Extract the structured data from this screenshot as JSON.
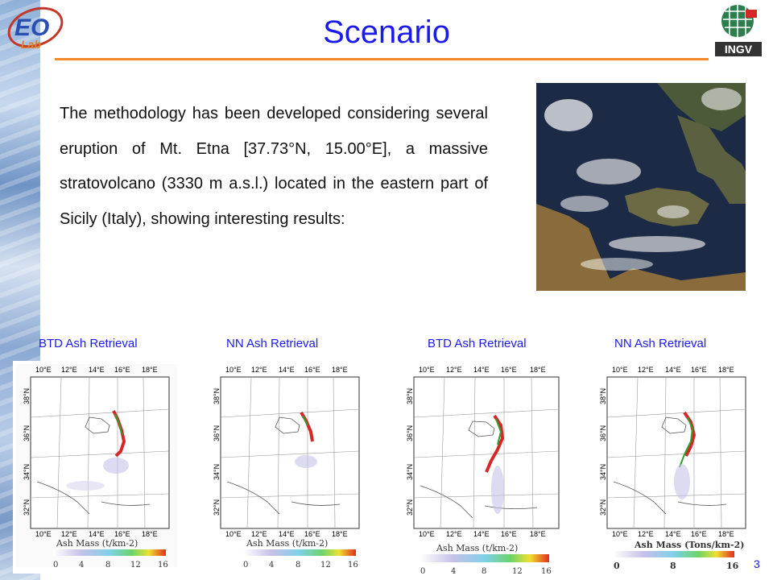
{
  "title": "Scenario",
  "logos": {
    "left": "EO Lab",
    "left_sub": "Tor Vergata",
    "right": "INGV"
  },
  "body_text": "The methodology has been developed considering several eruption of Mt. Etna [37.73°N, 15.00°E], a massive stratovolcano (3330 m a.s.l.) located in the eastern part of Sicily (Italy), showing interesting results:",
  "map_labels": [
    "BTD Ash Retrieval",
    "NN Ash Retrieval",
    "BTD Ash Retrieval",
    "NN Ash Retrieval"
  ],
  "lon_ticks": [
    "10°E",
    "12°E",
    "14°E",
    "16°E",
    "18°E"
  ],
  "lat_ticks": [
    "32°N",
    "34°N",
    "36°N",
    "38°N"
  ],
  "legend_titles": [
    "Ash Mass (t/km-2)",
    "Ash Mass (t/km-2)",
    "Ash Mass (t/km-2)",
    "Ash Mass (Tons/km-2)"
  ],
  "legend_ticks_a": [
    "0",
    "4",
    "8",
    "12",
    "16"
  ],
  "legend_ticks_b": [
    "0",
    "8",
    "16"
  ],
  "page_number": "3",
  "colors": {
    "title": "#1a1aee",
    "rule": "#f08a2c"
  }
}
